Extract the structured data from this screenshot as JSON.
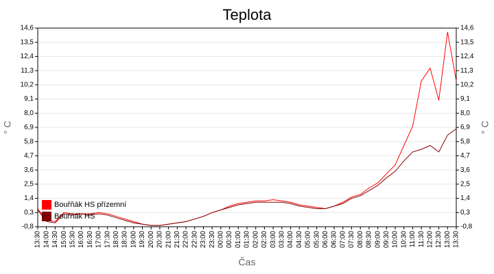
{
  "chart_data": {
    "type": "line",
    "title": "Teplota",
    "x_label": "Čas",
    "y_label": "° C",
    "y2_label": "° C",
    "categories": [
      "13:30",
      "14:00",
      "14:30",
      "15:00",
      "15:30",
      "16:00",
      "16:30",
      "17:00",
      "17:30",
      "18:00",
      "18:30",
      "19:00",
      "19:30",
      "20:00",
      "20:30",
      "21:00",
      "21:30",
      "22:00",
      "22:30",
      "23:00",
      "23:30",
      "00:00",
      "00:30",
      "01:00",
      "01:30",
      "02:00",
      "02:30",
      "03:00",
      "03:30",
      "04:00",
      "04:30",
      "05:00",
      "05:30",
      "06:00",
      "06:30",
      "07:00",
      "07:30",
      "08:00",
      "08:30",
      "09:00",
      "09:30",
      "10:00",
      "10:30",
      "11:00",
      "11:30",
      "12:00",
      "12:30",
      "13:00",
      "13:30"
    ],
    "series": [
      {
        "name": "Bouřňák HS přízemní",
        "color": "#ff0000",
        "values": [
          0.6,
          -0.3,
          -0.4,
          0.3,
          0.2,
          0.2,
          0.2,
          0.3,
          0.2,
          0.0,
          -0.2,
          -0.4,
          -0.6,
          -0.7,
          -0.7,
          -0.6,
          -0.5,
          -0.4,
          -0.2,
          0.0,
          0.3,
          0.5,
          0.8,
          1.0,
          1.1,
          1.2,
          1.2,
          1.3,
          1.2,
          1.1,
          0.9,
          0.8,
          0.7,
          0.6,
          0.8,
          1.1,
          1.5,
          1.7,
          2.2,
          2.6,
          3.3,
          4.0,
          5.5,
          7.0,
          10.5,
          11.5,
          9.0,
          14.3,
          10.5
        ]
      },
      {
        "name": "Bouřňák HS",
        "color": "#800000",
        "values": [
          0.5,
          -0.4,
          -0.5,
          0.2,
          0.1,
          0.2,
          0.1,
          0.2,
          0.1,
          -0.1,
          -0.3,
          -0.5,
          -0.6,
          -0.7,
          -0.7,
          -0.6,
          -0.5,
          -0.4,
          -0.2,
          0.0,
          0.3,
          0.5,
          0.7,
          0.9,
          1.0,
          1.1,
          1.1,
          1.1,
          1.1,
          1.0,
          0.8,
          0.7,
          0.6,
          0.6,
          0.8,
          1.0,
          1.4,
          1.6,
          2.0,
          2.4,
          3.0,
          3.5,
          4.3,
          5.0,
          5.2,
          5.5,
          5.0,
          6.3,
          6.8
        ]
      }
    ],
    "ylim": [
      -0.8,
      14.6
    ],
    "yticks": [
      {
        "value": -0.8,
        "label": "-0,8"
      },
      {
        "value": 0.3,
        "label": "0,3"
      },
      {
        "value": 1.4,
        "label": "1,4"
      },
      {
        "value": 2.5,
        "label": "2,5"
      },
      {
        "value": 3.6,
        "label": "3,6"
      },
      {
        "value": 4.7,
        "label": "4,7"
      },
      {
        "value": 5.8,
        "label": "5,8"
      },
      {
        "value": 6.9,
        "label": "6,9"
      },
      {
        "value": 8.0,
        "label": "8,0"
      },
      {
        "value": 9.1,
        "label": "9,1"
      },
      {
        "value": 10.2,
        "label": "10,2"
      },
      {
        "value": 11.3,
        "label": "11,3"
      },
      {
        "value": 12.4,
        "label": "12,4"
      },
      {
        "value": 13.5,
        "label": "13,5"
      },
      {
        "value": 14.6,
        "label": "14,6"
      }
    ],
    "y2lim": [
      -0.8,
      14.6
    ],
    "y2ticks": [
      {
        "value": -0.8,
        "label": "-0,8"
      },
      {
        "value": 0.3,
        "label": "0,3"
      },
      {
        "value": 1.4,
        "label": "1,4"
      },
      {
        "value": 2.5,
        "label": "2,5"
      },
      {
        "value": 3.6,
        "label": "3,6"
      },
      {
        "value": 4.7,
        "label": "4,7"
      },
      {
        "value": 5.8,
        "label": "5,8"
      },
      {
        "value": 6.9,
        "label": "6,9"
      },
      {
        "value": 8.0,
        "label": "8,0"
      },
      {
        "value": 9.1,
        "label": "9,1"
      },
      {
        "value": 10.2,
        "label": "10,2"
      },
      {
        "value": 11.3,
        "label": "11,3"
      },
      {
        "value": 12.4,
        "label": "12,4"
      },
      {
        "value": 13.5,
        "label": "13,5"
      },
      {
        "value": 14.6,
        "label": "14,6"
      }
    ],
    "grid": true,
    "legend": "lower left"
  }
}
